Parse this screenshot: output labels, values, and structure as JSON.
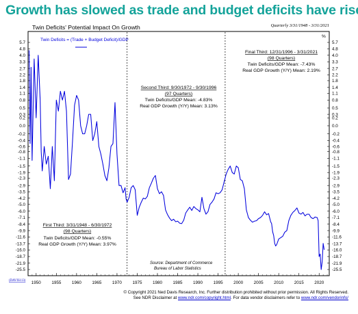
{
  "headline": "Growth has slowed as trade and budget deficits have risen",
  "chart_data": {
    "type": "line",
    "title": "Twin Deficits' Potential Impact On Growth",
    "frequency_note": "Quarterly 3/31/1948 - 3/31/2021",
    "y_unit": "%",
    "legend": [
      "Twin Deficits = (Trade + Budget Deficit)/GDP"
    ],
    "legend_placement": "top-left",
    "chart_code": "(DAVIS113)",
    "series": [
      {
        "name": "Twin Deficits = (Trade + Budget Deficit)/GDP",
        "color": "#0000dd",
        "x": [
          1948.25,
          1948.5,
          1948.75,
          1949,
          1949.5,
          1950,
          1950.5,
          1951,
          1951.25,
          1951.5,
          1952,
          1952.5,
          1953,
          1953.5,
          1954,
          1954.5,
          1955,
          1955.5,
          1956,
          1956.5,
          1957,
          1957.5,
          1958,
          1958.5,
          1959,
          1959.5,
          1960,
          1960.5,
          1961,
          1961.5,
          1962,
          1962.5,
          1963,
          1963.5,
          1964,
          1964.5,
          1965,
          1965.5,
          1966,
          1966.5,
          1967,
          1967.5,
          1968,
          1968.5,
          1969,
          1969.5,
          1970,
          1970.5,
          1971,
          1971.5,
          1972,
          1972.25,
          1972.5,
          1973,
          1973.5,
          1974,
          1974.5,
          1975,
          1975.5,
          1976,
          1976.5,
          1977,
          1977.5,
          1978,
          1978.5,
          1979,
          1979.5,
          1980,
          1980.5,
          1981,
          1981.5,
          1982,
          1982.5,
          1983,
          1983.5,
          1984,
          1984.5,
          1985,
          1985.5,
          1986,
          1986.5,
          1987,
          1987.5,
          1988,
          1988.5,
          1989,
          1989.5,
          1990,
          1990.5,
          1991,
          1991.5,
          1992,
          1992.5,
          1993,
          1993.5,
          1994,
          1994.5,
          1995,
          1995.5,
          1996,
          1996.5,
          1997,
          1997.5,
          1998,
          1998.5,
          1999,
          1999.5,
          2000,
          2000.5,
          2001,
          2001.5,
          2002,
          2002.5,
          2003,
          2003.5,
          2004,
          2004.5,
          2005,
          2005.5,
          2006,
          2006.5,
          2007,
          2007.5,
          2008,
          2008.25,
          2008.5,
          2008.75,
          2009,
          2009.25,
          2009.5,
          2010,
          2010.5,
          2011,
          2011.5,
          2012,
          2012.5,
          2013,
          2013.5,
          2014,
          2014.5,
          2015,
          2015.5,
          2016,
          2016.5,
          2017,
          2017.5,
          2018,
          2018.5,
          2019,
          2019.5,
          2019.75,
          2020,
          2020.25,
          2020.5,
          2020.75,
          2021,
          2021.25
        ],
        "y": [
          4.6,
          -0.5,
          2.8,
          -1.2,
          3.6,
          0.2,
          4.0,
          0.8,
          -0.8,
          -1.8,
          -0.6,
          -1.4,
          -1.0,
          -3.2,
          -0.6,
          -2.5,
          0.8,
          0.4,
          1.2,
          0.8,
          1.2,
          0.4,
          -2.4,
          -2.0,
          -0.4,
          0.6,
          1.0,
          0.8,
          0.0,
          -0.2,
          -0.2,
          0.0,
          0.3,
          0.3,
          -0.4,
          -0.2,
          0.1,
          -0.6,
          -0.9,
          -1.4,
          -2.1,
          -2.5,
          -1.6,
          -0.6,
          -0.5,
          0.7,
          -0.9,
          -2.9,
          -2.9,
          -3.6,
          -3.1,
          -4.3,
          -4.7,
          -4.1,
          -3.1,
          -2.9,
          -3.3,
          -6.7,
          -5.4,
          -4.7,
          -4.2,
          -4.3,
          -4.0,
          -3.1,
          -2.7,
          -2.3,
          -2.1,
          -3.2,
          -3.7,
          -3.5,
          -3.9,
          -5.8,
          -6.6,
          -7.2,
          -7.7,
          -7.4,
          -7.9,
          -7.8,
          -8.2,
          -8.3,
          -7.6,
          -6.3,
          -5.8,
          -5.4,
          -5.9,
          -5.3,
          -5.6,
          -5.8,
          -6.1,
          -4.1,
          -5.6,
          -6.5,
          -6.1,
          -5.0,
          -4.7,
          -4.3,
          -3.6,
          -3.7,
          -3.6,
          -3.3,
          -2.6,
          -2.0,
          -1.7,
          -1.5,
          -1.9,
          -2.0,
          -1.5,
          -1.6,
          -2.4,
          -2.5,
          -3.2,
          -5.8,
          -7.1,
          -7.6,
          -8.0,
          -7.8,
          -7.7,
          -7.3,
          -7.1,
          -6.7,
          -6.1,
          -6.6,
          -6.4,
          -7.9,
          -8.3,
          -10.2,
          -11.2,
          -13.6,
          -14.5,
          -14.0,
          -12.2,
          -11.8,
          -11.4,
          -10.3,
          -9.9,
          -7.7,
          -6.7,
          -6.2,
          -5.9,
          -5.5,
          -6.3,
          -6.5,
          -6.2,
          -6.8,
          -6.5,
          -6.5,
          -7.1,
          -7.3,
          -7.0,
          -7.1,
          -7.7,
          -18.7,
          -17.6,
          -25.5,
          -21.1,
          -13.6,
          -15.9
        ]
      }
    ],
    "y_axis": {
      "scale": "symlog",
      "range": [
        -25.5,
        5.7
      ],
      "tick_labels": [
        "5.7",
        "4.8",
        "4.0",
        "3.3",
        "2.7",
        "2.2",
        "1.8",
        "1.4",
        "1.1",
        "0.8",
        "0.5",
        "0.3",
        "0.2",
        "0.0",
        "-0.2",
        "-0.4",
        "-0.6",
        "-0.8",
        "-1.1",
        "-1.5",
        "-1.9",
        "-2.3",
        "-2.9",
        "-3.5",
        "-4.2",
        "-5.0",
        "-6.0",
        "-7.1",
        "-8.4",
        "-9.9",
        "-11.6",
        "-13.7",
        "-16.0",
        "-18.7",
        "-21.9",
        "-25.5"
      ]
    },
    "x_axis": {
      "range": [
        1948,
        2022.5
      ],
      "tick_labels": [
        "1950",
        "1955",
        "1960",
        "1965",
        "1970",
        "1975",
        "1980",
        "1985",
        "1990",
        "1995",
        "2000",
        "2005",
        "2010",
        "2015",
        "2020"
      ]
    },
    "dividers": [
      1972.5,
      1996.75
    ],
    "annotations": {
      "first": {
        "title": "First Third: 3/31/1948 - 6/30/1972",
        "quarters": "(98 Quarters)",
        "mean": "Twin Deficits/GDP Mean: -0.55%",
        "growth": "Real GDP Growth (Y/Y) Mean: 3.97%"
      },
      "second": {
        "title": "Second Third: 9/30/1972 - 9/30/1996",
        "quarters": "(97 Quarters)",
        "mean": "Twin Deficits/GDP Mean: -4.83%",
        "growth": "Real GDP Growth (Y/Y) Mean: 3.13%"
      },
      "third": {
        "title": "Final Third: 12/31/1996 - 3/31/2021",
        "quarters": "(98 Quarters)",
        "mean": "Twin Deficits/GDP Mean: -7.43%",
        "growth": "Real GDP Growth (Y/Y) Mean: 2.19%"
      }
    },
    "source": [
      "Source: Department of Commerce",
      "Bureau of Labor Statistics"
    ],
    "grid": false
  },
  "footer": {
    "copyright": "© Copyright 2021 Ned Davis Research, Inc.  Further distribution prohibited without prior permission.  All Rights Reserved.",
    "disclaimer_prefix": "See NDR Disclaimer at ",
    "disclaimer_link": "www.ndr.com/copyright.html",
    "disclaimer_middle": ". For data vendor disclaimers refer to ",
    "vendor_link": "www.ndr.com/vendorinfo/"
  }
}
